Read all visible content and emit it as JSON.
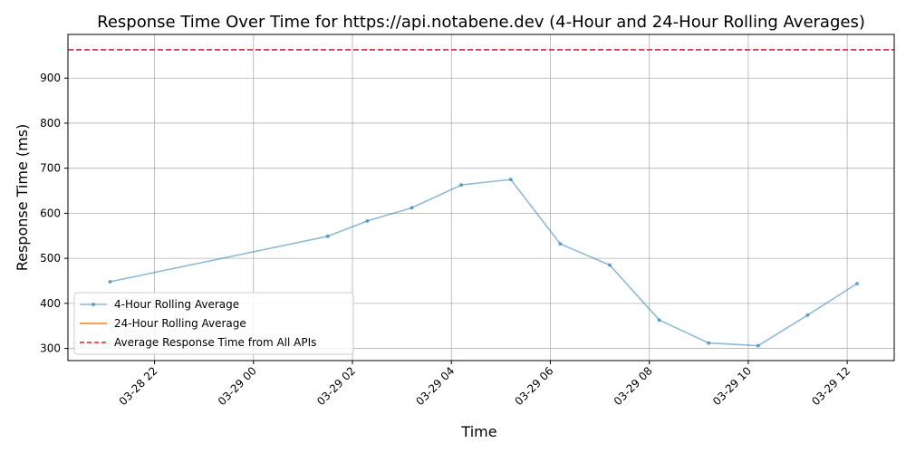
{
  "chart_data": {
    "type": "line",
    "title": "Response Time Over Time for https://api.notabene.dev (4-Hour and 24-Hour Rolling Averages)",
    "xlabel": "Time",
    "ylabel": "Response Time (ms)",
    "x_ticks": [
      "03-28 22",
      "03-29 00",
      "03-29 02",
      "03-29 04",
      "03-29 06",
      "03-29 08",
      "03-29 10",
      "03-29 12"
    ],
    "y_ticks": [
      300,
      400,
      500,
      600,
      700,
      800,
      900
    ],
    "xlim": [
      "2024-03-28T20:15",
      "2024-03-29T12:57"
    ],
    "ylim": [
      273,
      997
    ],
    "grid": true,
    "legend_position": "lower-left",
    "series": [
      {
        "name": "4-Hour Rolling Average",
        "color": "#1f77b4",
        "style": "solid-markers",
        "points": [
          {
            "x": "2024-03-28T21:06",
            "y": 448
          },
          {
            "x": "2024-03-29T01:30",
            "y": 549
          },
          {
            "x": "2024-03-29T02:18",
            "y": 583
          },
          {
            "x": "2024-03-29T03:12",
            "y": 612
          },
          {
            "x": "2024-03-29T04:12",
            "y": 663
          },
          {
            "x": "2024-03-29T05:12",
            "y": 675
          },
          {
            "x": "2024-03-29T06:12",
            "y": 532
          },
          {
            "x": "2024-03-29T07:12",
            "y": 485
          },
          {
            "x": "2024-03-29T08:12",
            "y": 363
          },
          {
            "x": "2024-03-29T09:12",
            "y": 312
          },
          {
            "x": "2024-03-29T10:12",
            "y": 306
          },
          {
            "x": "2024-03-29T11:12",
            "y": 374
          },
          {
            "x": "2024-03-29T12:12",
            "y": 444
          }
        ]
      },
      {
        "name": "24-Hour Rolling Average",
        "color": "#ff7f0e",
        "style": "solid",
        "points": []
      }
    ],
    "reference_line": {
      "name": "Average Response Time from All APIs",
      "y": 963,
      "color": "#d62728",
      "style": "dashed"
    }
  }
}
